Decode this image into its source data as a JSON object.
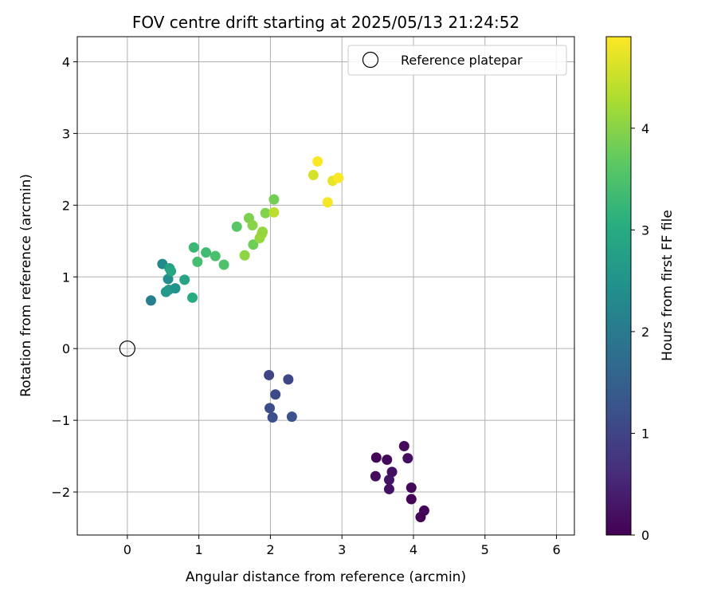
{
  "chart_data": {
    "type": "scatter",
    "title": "FOV centre drift starting at 2025/05/13 21:24:52",
    "xlabel": "Angular distance from reference (arcmin)",
    "ylabel": "Rotation from reference (arcmin)",
    "xlim": [
      -0.7,
      6.25
    ],
    "ylim": [
      -2.6,
      4.35
    ],
    "xticks": [
      0,
      1,
      2,
      3,
      4,
      5,
      6
    ],
    "yticks": [
      -2,
      -1,
      0,
      1,
      2,
      3,
      4
    ],
    "grid": true,
    "legend": {
      "position": "top-right",
      "entries": [
        "Reference platepar"
      ]
    },
    "reference_point": {
      "name": "Reference platepar",
      "x": 0,
      "y": 0
    },
    "colorbar": {
      "label": "Hours from first FF file",
      "range": [
        0,
        4.9
      ],
      "ticks": [
        0,
        1,
        2,
        3,
        4
      ],
      "colormap": "viridis"
    },
    "points": [
      {
        "x": 3.48,
        "y": -1.52,
        "hours": 0.05
      },
      {
        "x": 3.63,
        "y": -1.55,
        "hours": 0.1
      },
      {
        "x": 3.87,
        "y": -1.36,
        "hours": 0.12
      },
      {
        "x": 3.92,
        "y": -1.53,
        "hours": 0.18
      },
      {
        "x": 3.7,
        "y": -1.72,
        "hours": 0.2
      },
      {
        "x": 3.47,
        "y": -1.78,
        "hours": 0.15
      },
      {
        "x": 3.66,
        "y": -1.83,
        "hours": 0.25
      },
      {
        "x": 3.66,
        "y": -1.96,
        "hours": 0.22
      },
      {
        "x": 3.97,
        "y": -1.94,
        "hours": 0.08
      },
      {
        "x": 3.97,
        "y": -2.1,
        "hours": 0.03
      },
      {
        "x": 4.15,
        "y": -2.26,
        "hours": 0.06
      },
      {
        "x": 4.1,
        "y": -2.35,
        "hours": 0.02
      },
      {
        "x": 1.98,
        "y": -0.37,
        "hours": 1.0
      },
      {
        "x": 2.25,
        "y": -0.43,
        "hours": 1.05
      },
      {
        "x": 2.07,
        "y": -0.64,
        "hours": 1.1
      },
      {
        "x": 1.99,
        "y": -0.83,
        "hours": 1.15
      },
      {
        "x": 2.03,
        "y": -0.96,
        "hours": 1.2
      },
      {
        "x": 2.3,
        "y": -0.95,
        "hours": 1.25
      },
      {
        "x": 0.33,
        "y": 0.67,
        "hours": 2.1
      },
      {
        "x": 0.49,
        "y": 1.18,
        "hours": 2.3
      },
      {
        "x": 0.57,
        "y": 0.97,
        "hours": 2.4
      },
      {
        "x": 0.54,
        "y": 0.79,
        "hours": 2.6
      },
      {
        "x": 0.58,
        "y": 0.82,
        "hours": 2.65
      },
      {
        "x": 0.67,
        "y": 0.84,
        "hours": 2.5
      },
      {
        "x": 0.59,
        "y": 1.12,
        "hours": 2.8
      },
      {
        "x": 0.61,
        "y": 1.08,
        "hours": 2.9
      },
      {
        "x": 0.8,
        "y": 0.96,
        "hours": 2.85
      },
      {
        "x": 0.91,
        "y": 0.71,
        "hours": 3.0
      },
      {
        "x": 0.93,
        "y": 1.41,
        "hours": 3.3
      },
      {
        "x": 0.98,
        "y": 1.21,
        "hours": 3.4
      },
      {
        "x": 1.1,
        "y": 1.34,
        "hours": 3.35
      },
      {
        "x": 1.23,
        "y": 1.29,
        "hours": 3.45
      },
      {
        "x": 1.35,
        "y": 1.17,
        "hours": 3.5
      },
      {
        "x": 1.53,
        "y": 1.7,
        "hours": 3.6
      },
      {
        "x": 1.64,
        "y": 1.3,
        "hours": 4.05
      },
      {
        "x": 1.7,
        "y": 1.82,
        "hours": 3.9
      },
      {
        "x": 1.75,
        "y": 1.72,
        "hours": 4.0
      },
      {
        "x": 1.76,
        "y": 1.45,
        "hours": 3.8
      },
      {
        "x": 1.85,
        "y": 1.54,
        "hours": 4.1
      },
      {
        "x": 1.88,
        "y": 1.6,
        "hours": 4.15
      },
      {
        "x": 1.89,
        "y": 1.63,
        "hours": 4.1
      },
      {
        "x": 1.93,
        "y": 1.89,
        "hours": 3.95
      },
      {
        "x": 2.05,
        "y": 2.08,
        "hours": 3.85
      },
      {
        "x": 2.05,
        "y": 1.9,
        "hours": 4.4
      },
      {
        "x": 2.6,
        "y": 2.42,
        "hours": 4.6
      },
      {
        "x": 2.66,
        "y": 2.61,
        "hours": 4.9
      },
      {
        "x": 2.8,
        "y": 2.04,
        "hours": 4.85
      },
      {
        "x": 2.87,
        "y": 2.34,
        "hours": 4.75
      },
      {
        "x": 2.95,
        "y": 2.38,
        "hours": 4.88
      }
    ]
  }
}
